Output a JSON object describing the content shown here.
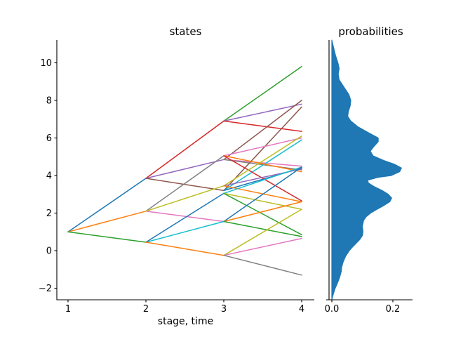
{
  "window": {
    "background": "#ffffff",
    "text_color": "#000000"
  },
  "chart_data": [
    {
      "type": "line",
      "title": "states",
      "xlabel": "stage, time",
      "ylabel": "",
      "x_ticks": [
        1,
        2,
        3,
        4
      ],
      "x_tick_labels": [
        "1",
        "2",
        "3",
        "4"
      ],
      "y_ticks": [
        -2,
        0,
        2,
        4,
        6,
        8,
        10
      ],
      "y_tick_labels": [
        "−2",
        "0",
        "2",
        "4",
        "6",
        "8",
        "10"
      ],
      "xlim": [
        0.86,
        4.16
      ],
      "ylim": [
        -2.62,
        11.21
      ],
      "grid": false,
      "legend": "none",
      "palette": [
        "#1f77b4",
        "#ff7f0e",
        "#2ca02c",
        "#d62728",
        "#9467bd",
        "#8c564b",
        "#e377c2",
        "#7f7f7f",
        "#bcbd22",
        "#17becf"
      ],
      "nodes": {
        "stage_1": [
          1.0
        ],
        "stage_2": [
          3.85,
          2.1,
          0.45
        ],
        "stage_3": [
          6.9,
          5.05,
          4.85,
          3.45,
          3.2,
          3.05,
          1.55,
          -0.25
        ],
        "stage_4": [
          9.8,
          8.0,
          7.8,
          7.65,
          6.35,
          6.1,
          6.0,
          5.9,
          4.5,
          4.45,
          4.4,
          4.35,
          4.3,
          4.2,
          2.65,
          2.6,
          2.2,
          0.85,
          0.75,
          0.65,
          -1.3
        ]
      },
      "edges": [
        [
          1,
          1.0,
          2,
          3.85,
          0
        ],
        [
          1,
          1.0,
          2,
          2.1,
          1
        ],
        [
          1,
          1.0,
          2,
          0.45,
          2
        ],
        [
          2,
          3.85,
          3,
          6.9,
          3
        ],
        [
          2,
          3.85,
          3,
          4.85,
          4
        ],
        [
          2,
          3.85,
          3,
          3.2,
          5
        ],
        [
          2,
          2.1,
          3,
          1.55,
          6
        ],
        [
          2,
          2.1,
          3,
          5.05,
          7
        ],
        [
          2,
          2.1,
          3,
          3.45,
          8
        ],
        [
          2,
          0.45,
          3,
          1.55,
          9
        ],
        [
          2,
          0.45,
          3,
          3.05,
          0
        ],
        [
          2,
          0.45,
          3,
          -0.25,
          1
        ],
        [
          3,
          6.9,
          4,
          9.8,
          2
        ],
        [
          3,
          6.9,
          4,
          7.8,
          4
        ],
        [
          3,
          6.9,
          4,
          6.35,
          3
        ],
        [
          3,
          4.85,
          4,
          8.0,
          5
        ],
        [
          3,
          4.85,
          4,
          4.5,
          6
        ],
        [
          3,
          4.85,
          4,
          4.3,
          7
        ],
        [
          3,
          3.2,
          4,
          7.65,
          5
        ],
        [
          3,
          3.2,
          4,
          5.9,
          9
        ],
        [
          3,
          3.2,
          4,
          4.4,
          0
        ],
        [
          3,
          5.05,
          4,
          6.0,
          6
        ],
        [
          3,
          5.05,
          4,
          4.2,
          1
        ],
        [
          3,
          5.05,
          4,
          2.65,
          3
        ],
        [
          3,
          3.45,
          4,
          6.1,
          8
        ],
        [
          3,
          3.45,
          4,
          4.35,
          4
        ],
        [
          3,
          3.45,
          4,
          2.6,
          1
        ],
        [
          3,
          3.05,
          4,
          4.45,
          9
        ],
        [
          3,
          3.05,
          4,
          2.2,
          8
        ],
        [
          3,
          3.05,
          4,
          0.85,
          2
        ],
        [
          3,
          1.55,
          4,
          4.45,
          0
        ],
        [
          3,
          1.55,
          4,
          2.6,
          1
        ],
        [
          3,
          1.55,
          4,
          0.75,
          2
        ],
        [
          3,
          -0.25,
          4,
          2.2,
          8
        ],
        [
          3,
          -0.25,
          4,
          0.65,
          6
        ],
        [
          3,
          -0.25,
          4,
          -1.3,
          7
        ]
      ]
    },
    {
      "type": "area",
      "title": "probabilities",
      "orientation": "horizontal",
      "fill_color": "#1f77b4",
      "x_ticks": [
        0.0,
        0.2
      ],
      "x_tick_labels": [
        "0.0",
        "0.2"
      ],
      "xlim": [
        -0.009,
        0.264
      ],
      "ylim": [
        -2.62,
        11.21
      ],
      "grid": false,
      "points": [
        [
          11.21,
          0.0
        ],
        [
          11.0,
          0.003
        ],
        [
          10.8,
          0.006
        ],
        [
          10.4,
          0.012
        ],
        [
          10.0,
          0.02
        ],
        [
          9.7,
          0.024
        ],
        [
          9.4,
          0.021
        ],
        [
          9.1,
          0.024
        ],
        [
          8.7,
          0.04
        ],
        [
          8.3,
          0.056
        ],
        [
          8.0,
          0.062
        ],
        [
          7.7,
          0.06
        ],
        [
          7.4,
          0.054
        ],
        [
          7.15,
          0.052
        ],
        [
          6.9,
          0.062
        ],
        [
          6.6,
          0.085
        ],
        [
          6.3,
          0.118
        ],
        [
          6.0,
          0.152
        ],
        [
          5.8,
          0.152
        ],
        [
          5.55,
          0.138
        ],
        [
          5.3,
          0.126
        ],
        [
          5.05,
          0.135
        ],
        [
          4.8,
          0.17
        ],
        [
          4.6,
          0.205
        ],
        [
          4.4,
          0.228
        ],
        [
          4.2,
          0.222
        ],
        [
          4.0,
          0.195
        ],
        [
          3.9,
          0.15
        ],
        [
          3.75,
          0.117
        ],
        [
          3.6,
          0.12
        ],
        [
          3.4,
          0.14
        ],
        [
          3.2,
          0.165
        ],
        [
          3.0,
          0.185
        ],
        [
          2.8,
          0.196
        ],
        [
          2.6,
          0.19
        ],
        [
          2.4,
          0.17
        ],
        [
          2.2,
          0.148
        ],
        [
          2.0,
          0.127
        ],
        [
          1.8,
          0.112
        ],
        [
          1.6,
          0.104
        ],
        [
          1.3,
          0.1
        ],
        [
          1.0,
          0.102
        ],
        [
          0.8,
          0.1
        ],
        [
          0.6,
          0.092
        ],
        [
          0.4,
          0.08
        ],
        [
          0.2,
          0.068
        ],
        [
          0.0,
          0.057
        ],
        [
          -0.3,
          0.045
        ],
        [
          -0.6,
          0.037
        ],
        [
          -0.9,
          0.032
        ],
        [
          -1.1,
          0.031
        ],
        [
          -1.4,
          0.026
        ],
        [
          -1.7,
          0.019
        ],
        [
          -2.0,
          0.011
        ],
        [
          -2.3,
          0.005
        ],
        [
          -2.55,
          0.001
        ],
        [
          -2.62,
          0.0
        ]
      ]
    }
  ]
}
